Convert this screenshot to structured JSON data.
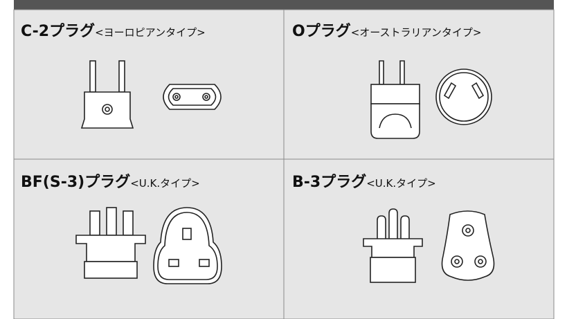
{
  "cells": [
    {
      "name": "C-2プラグ",
      "type": "<ヨーロピアンタイプ>"
    },
    {
      "name": "Oプラグ",
      "type": "<オーストラリアンタイプ>"
    },
    {
      "name": "BF(S-3)プラグ",
      "type": "<U.K.タイプ>"
    },
    {
      "name": "B-3プラグ",
      "type": "<U.K.タイプ>"
    }
  ]
}
